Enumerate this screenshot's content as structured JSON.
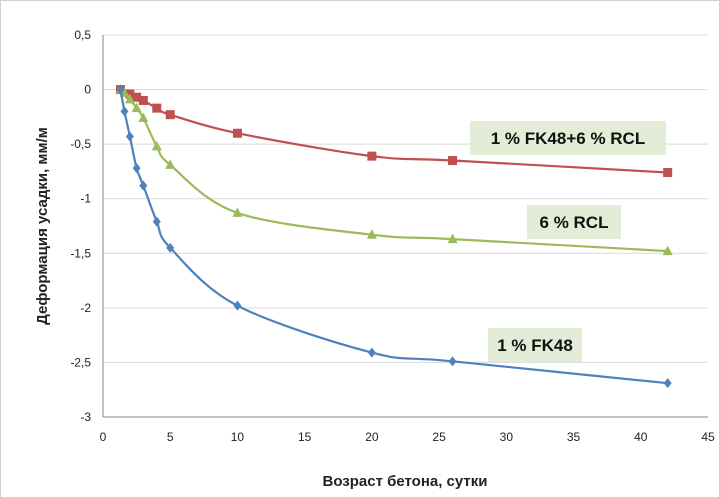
{
  "chart_data": {
    "type": "line",
    "xlabel": "Возраст бетона, сутки",
    "ylabel": "Деформация усадки, мм/м",
    "xlim": [
      0,
      45
    ],
    "ylim": [
      -3,
      0.5
    ],
    "x_ticks": [
      "0",
      "5",
      "10",
      "15",
      "20",
      "25",
      "30",
      "35",
      "40",
      "45"
    ],
    "y_ticks": [
      "0,5",
      "0",
      "-0,5",
      "-1",
      "-1,5",
      "-2",
      "-2,5",
      "-3"
    ],
    "grid": "horizontal",
    "series": [
      {
        "name": "1 % FK48+6 % RCL",
        "color": "#c0504d",
        "marker": "square",
        "x": [
          1.3,
          2,
          2.5,
          3,
          4,
          5,
          10,
          20,
          26,
          42
        ],
        "y": [
          0,
          -0.04,
          -0.07,
          -0.1,
          -0.17,
          -0.23,
          -0.4,
          -0.61,
          -0.65,
          -0.76
        ]
      },
      {
        "name": "6 % RCL",
        "color": "#9bbb59",
        "marker": "triangle",
        "x": [
          1.3,
          1.6,
          2,
          2.5,
          3,
          4,
          5,
          10,
          20,
          26,
          42
        ],
        "y": [
          0,
          -0.03,
          -0.09,
          -0.17,
          -0.26,
          -0.52,
          -0.69,
          -1.13,
          -1.33,
          -1.37,
          -1.48
        ]
      },
      {
        "name": "1 % FK48",
        "color": "#4f81bd",
        "marker": "diamond",
        "x": [
          1.3,
          1.6,
          2,
          2.5,
          3,
          4,
          5,
          10,
          20,
          26,
          42
        ],
        "y": [
          0,
          -0.2,
          -0.43,
          -0.72,
          -0.88,
          -1.21,
          -1.45,
          -1.98,
          -2.41,
          -2.49,
          -2.69
        ]
      }
    ],
    "annotations": [
      {
        "text": "1 % FK48+6 % RCL",
        "series": "1 % FK48+6 % RCL",
        "background": "#e3ecd6"
      },
      {
        "text": "6 % RCL",
        "series": "6 % RCL",
        "background": "#e3ecd6"
      },
      {
        "text": "1 % FK48",
        "series": "1 % FK48",
        "background": "#e3ecd6"
      }
    ]
  }
}
